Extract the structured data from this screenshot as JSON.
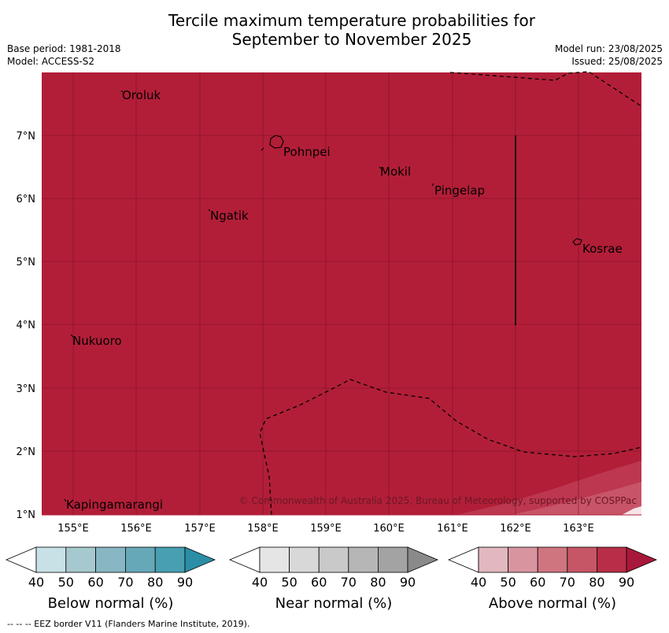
{
  "title": {
    "line1": "Tercile maximum temperature probabilities for",
    "line2": "September to November 2025"
  },
  "meta": {
    "base_period": "Base period: 1981-2018",
    "model": "Model: ACCESS-S2",
    "model_run": "Model run: 23/08/2025",
    "issued": "Issued: 25/08/2025"
  },
  "map": {
    "fill_color": "#b21e38",
    "grid_color": "#7a1023",
    "lon_labels": [
      "155°E",
      "156°E",
      "157°E",
      "158°E",
      "159°E",
      "160°E",
      "161°E",
      "162°E",
      "163°E"
    ],
    "lat_labels": [
      "7°N",
      "6°N",
      "5°N",
      "4°N",
      "3°N",
      "2°N",
      "1°N"
    ],
    "places": [
      "Oroluk",
      "Pohnpei",
      "Mokil",
      "Pingelap",
      "Ngatik",
      "Kosrae",
      "Nukuoro",
      "Kapingamarangi"
    ],
    "copyright": "© Commonwealth of Australia 2025, Bureau of Meteorology, supported by COSPPac"
  },
  "colorbars": [
    {
      "name": "below",
      "title": "Below normal (%)",
      "colors": [
        "#c8e1e7",
        "#a6c8cf",
        "#88b6c2",
        "#66a8b8",
        "#479fb1"
      ],
      "arrow_color": "#2b8ea6",
      "ticks": [
        "40",
        "50",
        "60",
        "70",
        "80",
        "90"
      ]
    },
    {
      "name": "near",
      "title": "Near normal (%)",
      "colors": [
        "#e5e5e5",
        "#d8d8d8",
        "#c9c9c9",
        "#b6b6b6",
        "#a3a3a3"
      ],
      "arrow_color": "#8a8a8a",
      "ticks": [
        "40",
        "50",
        "60",
        "70",
        "80",
        "90"
      ]
    },
    {
      "name": "above",
      "title": "Above normal (%)",
      "colors": [
        "#e2b7bf",
        "#d8959f",
        "#cf7580",
        "#c65666",
        "#b82d47"
      ],
      "arrow_color": "#a8183a",
      "ticks": [
        "40",
        "50",
        "60",
        "70",
        "80",
        "90"
      ]
    }
  ],
  "footnote": "--  --  -- EEZ border V11 (Flanders Marine Institute, 2019)."
}
